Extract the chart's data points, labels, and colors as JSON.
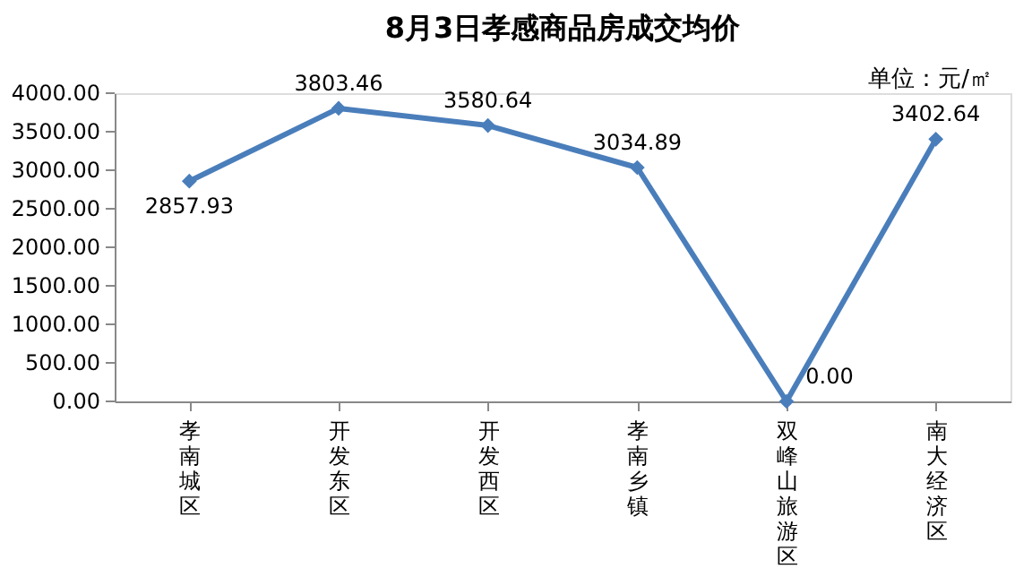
{
  "chart_data": {
    "type": "line",
    "title": "8月3日孝感商品房成交均价",
    "annotations": [
      "单位：元/㎡"
    ],
    "categories": [
      "孝南城区",
      "开发东区",
      "开发西区",
      "孝南乡镇",
      "双峰山旅游区",
      "南大经济区"
    ],
    "series": [
      {
        "color": "#4a7ebb",
        "values": [
          2857.93,
          3803.46,
          3580.64,
          3034.89,
          0.0,
          3402.64
        ],
        "value_labels": [
          "2857.93",
          "3803.46",
          "3580.64",
          "3034.89",
          "0.00",
          "3402.64"
        ]
      }
    ],
    "ylim": [
      0,
      4000
    ],
    "yticks": [
      {
        "value": 0,
        "label": "0.00"
      },
      {
        "value": 500,
        "label": "500.00"
      },
      {
        "value": 1000,
        "label": "1000.00"
      },
      {
        "value": 1500,
        "label": "1500.00"
      },
      {
        "value": 2000,
        "label": "2000.00"
      },
      {
        "value": 2500,
        "label": "2500.00"
      },
      {
        "value": 3000,
        "label": "3000.00"
      },
      {
        "value": 3500,
        "label": "3500.00"
      },
      {
        "value": 4000,
        "label": "4000.00"
      }
    ],
    "grid": false,
    "marker": "diamond",
    "line_style": "solid",
    "data_labels": true
  }
}
